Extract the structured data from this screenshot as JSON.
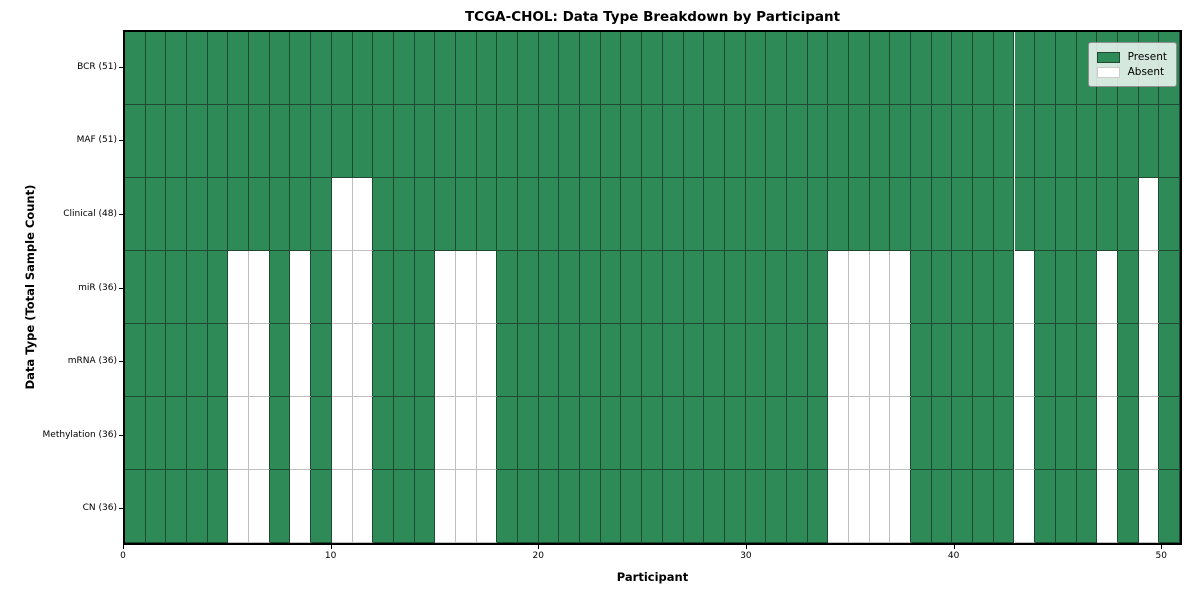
{
  "chart_data": {
    "type": "heatmap",
    "title": "TCGA-CHOL: Data Type Breakdown by Participant",
    "xlabel": "Participant",
    "ylabel": "Data Type (Total Sample Count)",
    "n_participants": 51,
    "x_ticks": [
      0,
      10,
      20,
      30,
      40,
      50
    ],
    "xlim": [
      0,
      51
    ],
    "grid": true,
    "legend_position": "upper right",
    "colors": {
      "present": "#2e8b57",
      "absent": "#ffffff",
      "present_edge": "#1e4a31",
      "absent_edge": "#bfbfbf"
    },
    "legend": [
      {
        "label": "Present",
        "color": "#2e8b57"
      },
      {
        "label": "Absent",
        "color": "#ffffff"
      }
    ],
    "rows": [
      {
        "name": "BCR",
        "label": "BCR (51)",
        "present_count": 51,
        "absent_participants": []
      },
      {
        "name": "MAF",
        "label": "MAF (51)",
        "present_count": 51,
        "absent_participants": []
      },
      {
        "name": "Clinical",
        "label": "Clinical (48)",
        "present_count": 48,
        "absent_participants": [
          10,
          11,
          49
        ]
      },
      {
        "name": "miR",
        "label": "miR (36)",
        "present_count": 36,
        "absent_participants": [
          5,
          6,
          8,
          10,
          11,
          15,
          16,
          17,
          34,
          35,
          36,
          37,
          43,
          47,
          49
        ]
      },
      {
        "name": "mRNA",
        "label": "mRNA (36)",
        "present_count": 36,
        "absent_participants": [
          5,
          6,
          8,
          10,
          11,
          15,
          16,
          17,
          34,
          35,
          36,
          37,
          43,
          47,
          49
        ]
      },
      {
        "name": "Methylation",
        "label": "Methylation (36)",
        "present_count": 36,
        "absent_participants": [
          5,
          6,
          8,
          10,
          11,
          15,
          16,
          17,
          34,
          35,
          36,
          37,
          43,
          47,
          49
        ]
      },
      {
        "name": "CN",
        "label": "CN (36)",
        "present_count": 36,
        "absent_participants": [
          5,
          6,
          8,
          10,
          11,
          15,
          16,
          17,
          34,
          35,
          36,
          37,
          43,
          47,
          49
        ]
      }
    ]
  }
}
